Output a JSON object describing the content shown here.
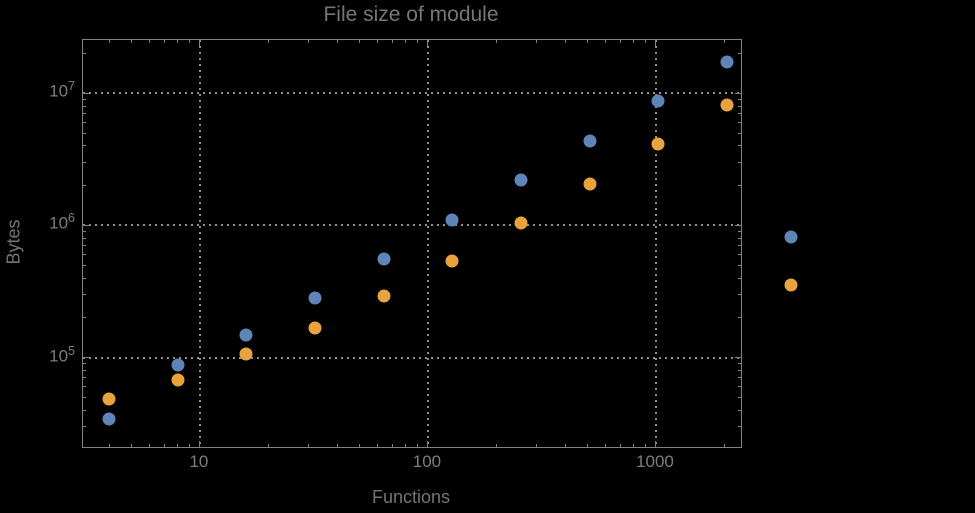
{
  "chart_data": {
    "type": "scatter",
    "title": "File size of module",
    "xlabel": "Functions",
    "ylabel": "Bytes",
    "xscale": "log",
    "yscale": "log",
    "xlim": [
      3.07,
      2360
    ],
    "ylim": [
      21000,
      25400000
    ],
    "grid": true,
    "legend": "none",
    "x_major_ticks": [
      10,
      100,
      1000
    ],
    "x_tick_labels": [
      "10",
      "100",
      "1000"
    ],
    "x_minor_ticks": [
      4,
      5,
      6,
      7,
      8,
      9,
      20,
      30,
      40,
      50,
      60,
      70,
      80,
      90,
      200,
      300,
      400,
      500,
      600,
      700,
      800,
      900,
      2000
    ],
    "y_major_ticks": [
      100000,
      1000000,
      10000000
    ],
    "y_tick_labels": [
      {
        "base": "10",
        "exp": "5",
        "value": 100000
      },
      {
        "base": "10",
        "exp": "6",
        "value": 1000000
      },
      {
        "base": "10",
        "exp": "7",
        "value": 10000000
      }
    ],
    "y_minor_ticks": [
      30000,
      40000,
      50000,
      60000,
      70000,
      80000,
      90000,
      200000,
      300000,
      400000,
      500000,
      600000,
      700000,
      800000,
      900000,
      2000000,
      3000000,
      4000000,
      5000000,
      6000000,
      7000000,
      8000000,
      9000000,
      20000000
    ],
    "series": [
      {
        "name": "series-1-blue",
        "color": "#5e84b8",
        "x": [
          4,
          8,
          16,
          32,
          64,
          128,
          256,
          512,
          1024,
          2048,
          3900
        ],
        "y": [
          34500,
          87000,
          148000,
          284000,
          555000,
          1100000,
          2210000,
          4370000,
          8770000,
          17400000,
          820000
        ]
      },
      {
        "name": "series-2-orange",
        "color": "#e8a33c",
        "x": [
          4,
          8,
          16,
          32,
          64,
          128,
          256,
          512,
          1024,
          2048,
          3900
        ],
        "y": [
          48500,
          68000,
          106000,
          168000,
          292000,
          538000,
          1040000,
          2050000,
          4170000,
          8180000,
          354000
        ]
      }
    ]
  },
  "colors": {
    "background": "#000000",
    "frame": "#828282",
    "grid": "#8f8f8f",
    "title_text": "#767676",
    "tick_text": "#7d7d7d",
    "series1": "#5e84b8",
    "series2": "#e8a33c"
  }
}
